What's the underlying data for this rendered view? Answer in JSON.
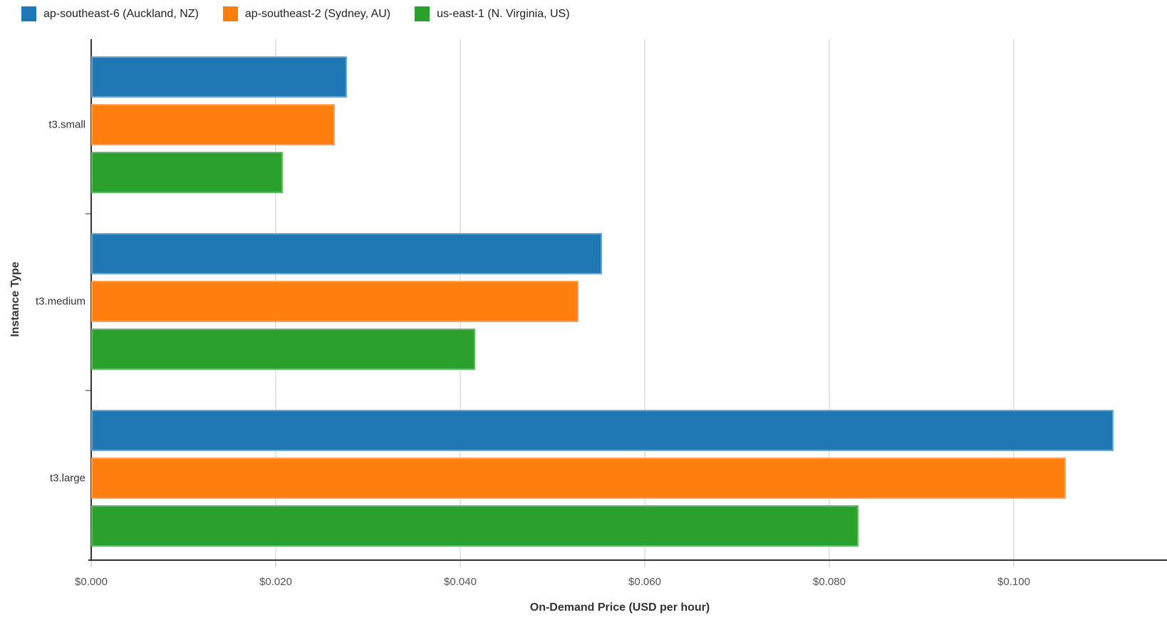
{
  "chart_data": {
    "type": "bar",
    "orientation": "horizontal",
    "title": "",
    "xlabel": "On-Demand Price (USD per hour)",
    "ylabel": "Instance Type",
    "categories": [
      "t3.small",
      "t3.medium",
      "t3.large"
    ],
    "series": [
      {
        "name": "ap-southeast-6 (Auckland, NZ)",
        "color": "#1f77b4",
        "border_color": "#6ea6cc",
        "values": [
          0.0277,
          0.0554,
          0.1108
        ]
      },
      {
        "name": "ap-southeast-2 (Sydney, AU)",
        "color": "#ff7f0e",
        "border_color": "#ffa358",
        "values": [
          0.0264,
          0.0528,
          0.1056
        ]
      },
      {
        "name": "us-east-1 (N. Virginia, US)",
        "color": "#2ca02c",
        "border_color": "#66b966",
        "values": [
          0.0208,
          0.0416,
          0.0832
        ]
      }
    ],
    "x_ticks": [
      {
        "value": 0.0,
        "label": "$0.000"
      },
      {
        "value": 0.02,
        "label": "$0.020"
      },
      {
        "value": 0.04,
        "label": "$0.040"
      },
      {
        "value": 0.06,
        "label": "$0.060"
      },
      {
        "value": 0.08,
        "label": "$0.080"
      },
      {
        "value": 0.1,
        "label": "$0.100"
      }
    ],
    "xlim": [
      0,
      0.1166
    ],
    "grid": true,
    "legend_position": "top-left",
    "axis_color": "#333333",
    "gridline_color": "#e5e5e5",
    "tick_text_color": "#545454"
  }
}
